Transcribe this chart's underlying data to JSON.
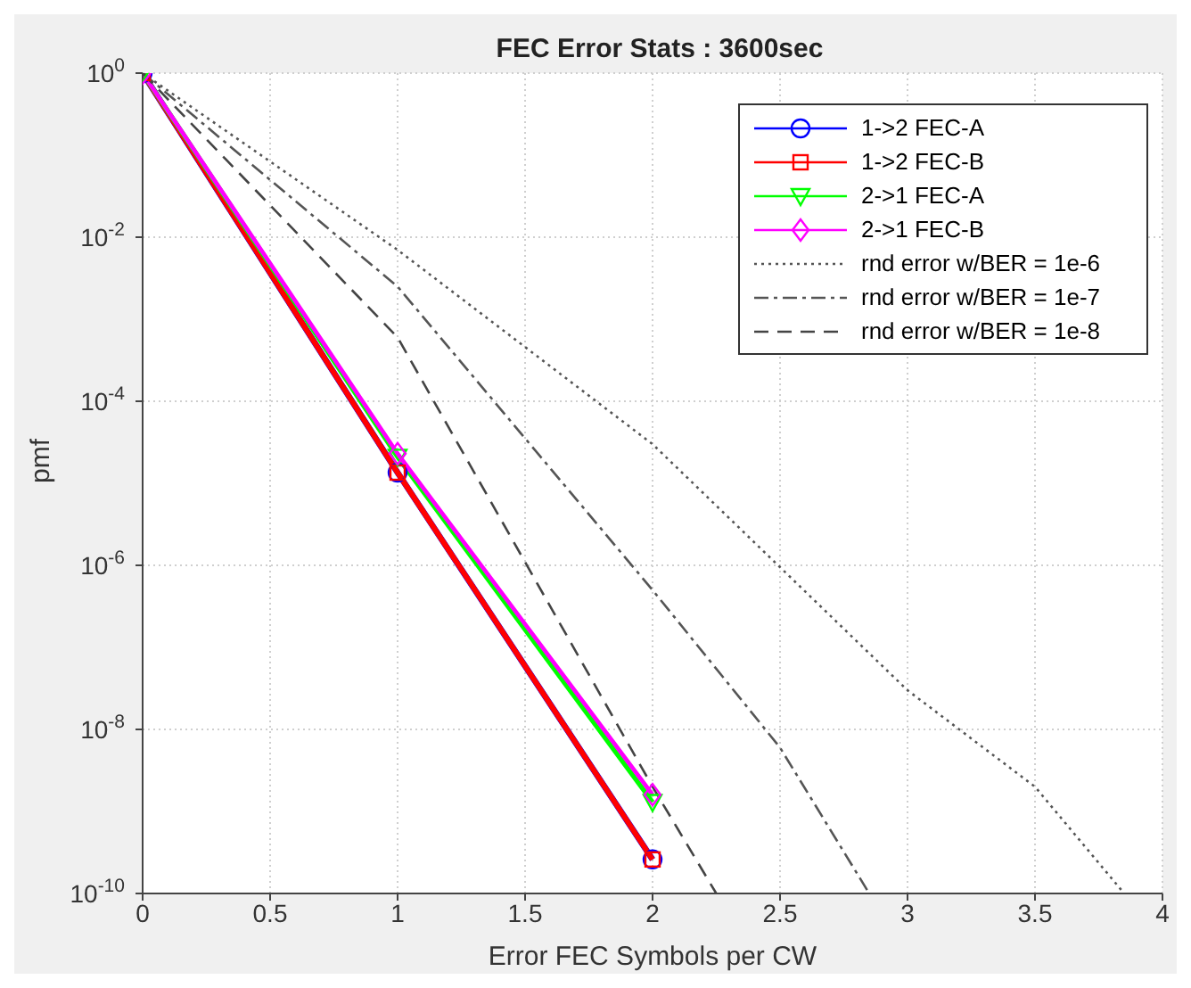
{
  "chart_data": {
    "type": "line",
    "title": "FEC Error Stats : 3600sec",
    "xlabel": "Error FEC Symbols per CW",
    "ylabel": "pmf",
    "log": "y",
    "grid": true,
    "legend": "top right",
    "xlim": [
      0,
      4
    ],
    "xticks": [
      0,
      0.5,
      1,
      1.5,
      2,
      2.5,
      3,
      3.5,
      4
    ],
    "ylim": [
      1e-10,
      1
    ],
    "yticks": [
      {
        "value": 1,
        "label": "10$^{0}$"
      },
      {
        "value": 0.01,
        "label": "10$^{-2}$"
      },
      {
        "value": 0.0001,
        "label": "10$^{-4}$"
      },
      {
        "value": 1e-06,
        "label": "10$^{-6}$"
      },
      {
        "value": 1e-08,
        "label": "10$^{-8}$"
      },
      {
        "value": 1e-10,
        "label": "10$^{-10}$"
      }
    ],
    "series": [
      {
        "name": "1->2 FEC-A",
        "color": "#0000ff",
        "marker": "circle",
        "line_style": "solid",
        "x": [
          0,
          1,
          2
        ],
        "values": [
          1,
          1.35e-05,
          2.6e-10
        ]
      },
      {
        "name": "1->2 FEC-B",
        "color": "#ff0000",
        "marker": "square",
        "line_style": "solid",
        "x": [
          0,
          1,
          2
        ],
        "values": [
          1,
          1.35e-05,
          2.6e-10
        ]
      },
      {
        "name": "2->1 FEC-A",
        "color": "#00ff00",
        "marker": "triangle",
        "line_style": "solid",
        "x": [
          0,
          1,
          2
        ],
        "values": [
          1,
          2.1e-05,
          1.3e-09
        ]
      },
      {
        "name": "2->1 FEC-B",
        "color": "#ff00ff",
        "marker": "diamond",
        "line_style": "solid",
        "x": [
          0,
          1,
          2
        ],
        "values": [
          1,
          2.3e-05,
          1.6e-09
        ]
      },
      {
        "name": "rnd error w/BER = 1e-6",
        "color": "#555555",
        "marker": "none",
        "line_style": "dotted",
        "x": [
          0,
          1,
          2,
          3,
          3.5,
          3.85
        ],
        "values": [
          1,
          0.007,
          3e-05,
          3e-08,
          2e-09,
          1e-10
        ]
      },
      {
        "name": "rnd error w/BER = 1e-7",
        "color": "#555555",
        "marker": "none",
        "line_style": "dashdot",
        "x": [
          0,
          1,
          2,
          2.5,
          2.85
        ],
        "values": [
          1,
          0.0025,
          5e-07,
          6e-09,
          1e-10
        ]
      },
      {
        "name": "rnd error w/BER = 1e-8",
        "color": "#444444",
        "marker": "none",
        "line_style": "dashed",
        "x": [
          0,
          1,
          2,
          2.25
        ],
        "values": [
          1,
          0.0006,
          2e-09,
          1e-10
        ]
      }
    ]
  }
}
